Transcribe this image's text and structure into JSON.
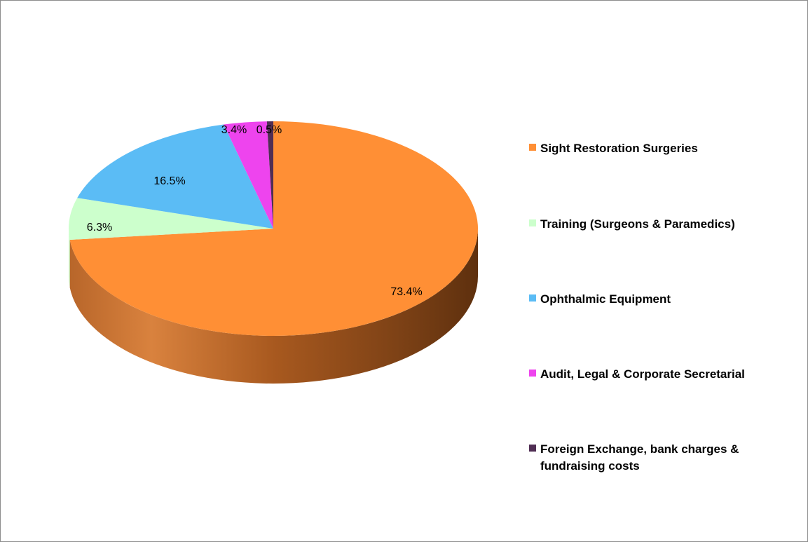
{
  "chart_data": {
    "type": "pie",
    "three_d": true,
    "labels": [
      "Sight Restoration Surgeries",
      "Training (Surgeons & Paramedics)",
      "Ophthalmic Equipment",
      "Audit, Legal & Corporate Secretarial",
      "Foreign Exchange, bank charges & fundraising costs"
    ],
    "values": [
      73.4,
      6.3,
      16.5,
      3.4,
      0.5
    ],
    "value_labels": [
      "73.4%",
      "6.3%",
      "16.5%",
      "3.4%",
      "0.5%"
    ],
    "colors": [
      "#FF8F35",
      "#CCFFCC",
      "#5BBCF5",
      "#EE44EE",
      "#502E54"
    ],
    "legend_position": "right"
  }
}
